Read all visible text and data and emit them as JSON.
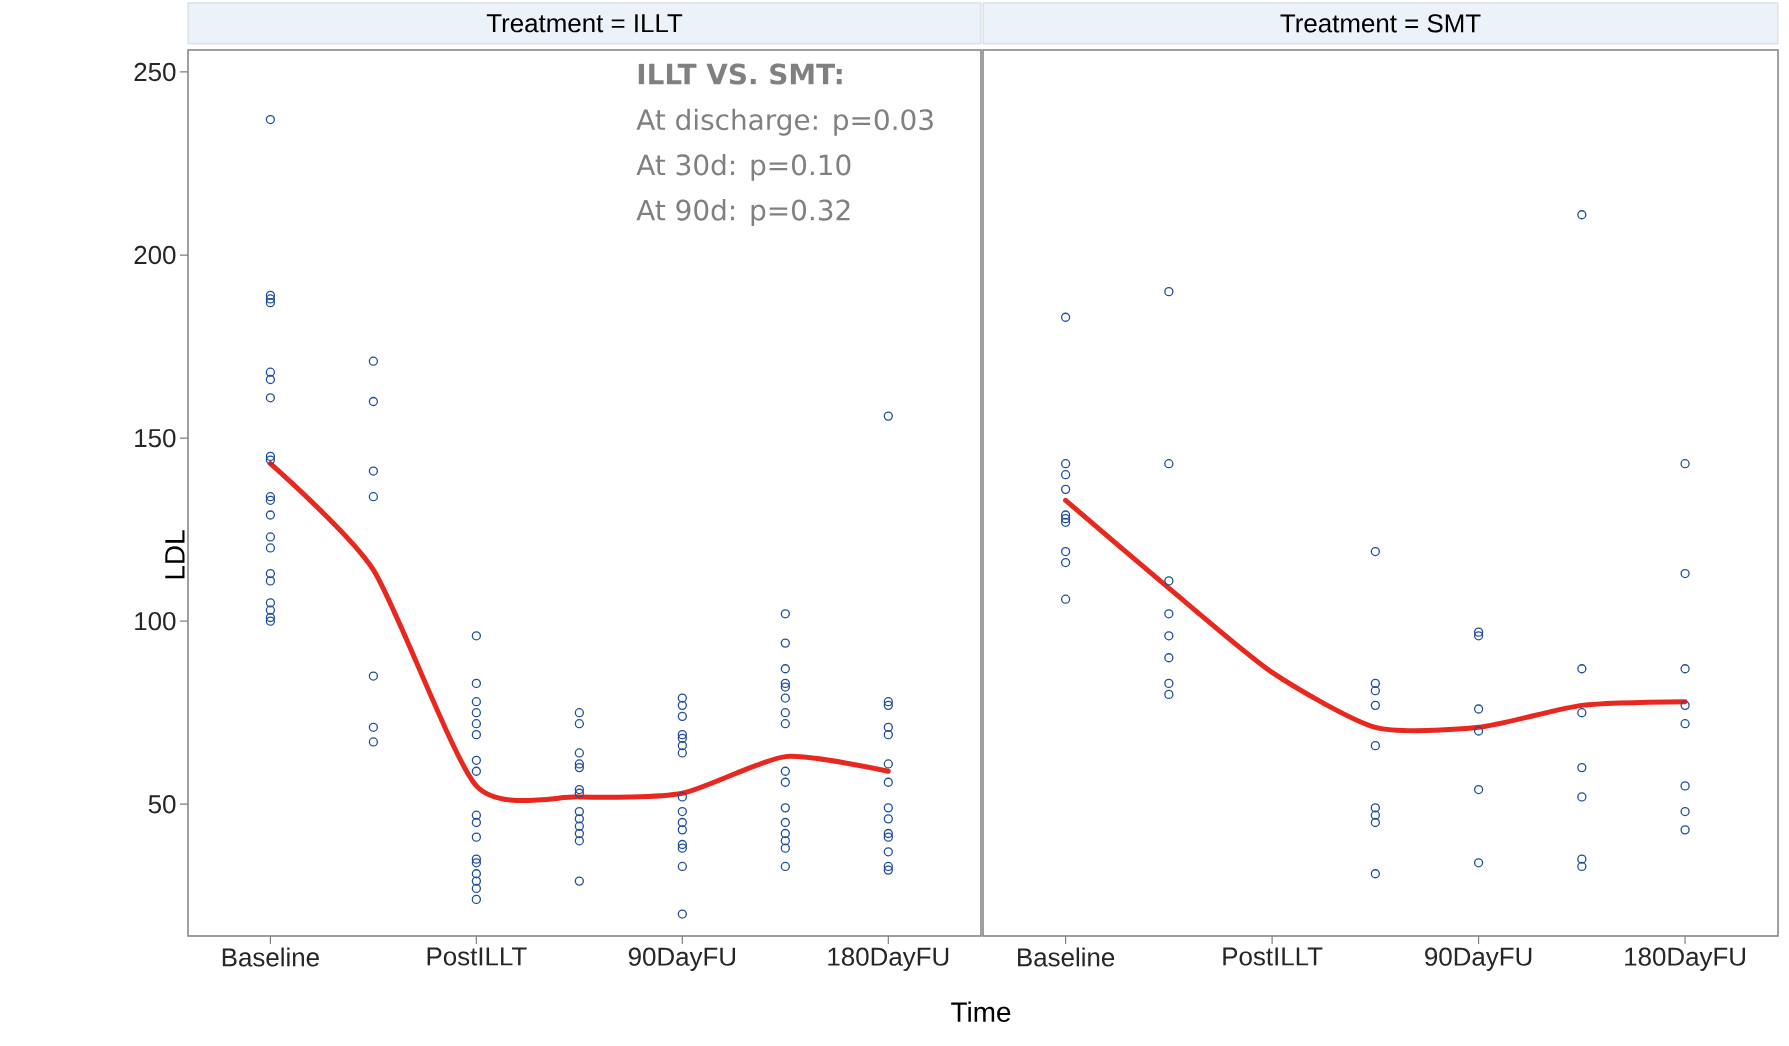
{
  "chart_data": [
    {
      "type": "scatter",
      "title": "Treatment = ILLT",
      "ylabel": "LDL",
      "xlabel": "Time",
      "annotations": [
        "ILLT VS. SMT:",
        "At discharge: p=0.03",
        "At 30d:        p=0.10",
        "At 90d:        p=0.32"
      ],
      "categories": [
        "Baseline",
        null,
        "PostILLT",
        null,
        "90DayFU",
        null,
        "180DayFU"
      ],
      "ylim": [
        14,
        256
      ],
      "yticks": [
        50,
        100,
        150,
        200,
        250
      ],
      "grid": false,
      "color": "#1f4e9c",
      "marker": "circle",
      "series": [
        {
          "values": [
            237,
            171,
            96,
            75,
            79,
            102,
            156
          ]
        },
        {
          "values": [
            189,
            160,
            83,
            72,
            77,
            94,
            78
          ]
        },
        {
          "values": [
            188,
            141,
            78,
            64,
            74,
            87,
            77
          ]
        },
        {
          "values": [
            187,
            134,
            75,
            61,
            69,
            83,
            71
          ]
        },
        {
          "values": [
            168,
            85,
            72,
            60,
            68,
            82,
            69
          ]
        },
        {
          "values": [
            166,
            71,
            69,
            54,
            66,
            79,
            61
          ]
        },
        {
          "values": [
            161,
            67,
            62,
            53,
            64,
            75,
            56
          ]
        },
        {
          "values": [
            145,
            null,
            59,
            48,
            52,
            72,
            49
          ]
        },
        {
          "values": [
            144,
            null,
            47,
            46,
            48,
            59,
            46
          ]
        },
        {
          "values": [
            134,
            null,
            45,
            44,
            45,
            56,
            42
          ]
        },
        {
          "values": [
            133,
            null,
            41,
            42,
            43,
            49,
            41
          ]
        },
        {
          "values": [
            129,
            null,
            35,
            40,
            39,
            45,
            37
          ]
        },
        {
          "values": [
            123,
            null,
            34,
            29,
            38,
            42,
            33
          ]
        },
        {
          "values": [
            120,
            null,
            31,
            null,
            33,
            40,
            32
          ]
        },
        {
          "values": [
            113,
            null,
            29,
            null,
            20,
            38,
            null
          ]
        },
        {
          "values": [
            111,
            null,
            27,
            null,
            null,
            33,
            null
          ]
        },
        {
          "values": [
            105,
            null,
            24,
            null,
            null,
            null,
            null
          ]
        },
        {
          "values": [
            103,
            null,
            null,
            null,
            null,
            null,
            null
          ]
        },
        {
          "values": [
            101,
            null,
            null,
            null,
            null,
            null,
            null
          ]
        },
        {
          "values": [
            100,
            null,
            null,
            null,
            null,
            null,
            null
          ]
        },
        {
          "type": "line",
          "marker": "none",
          "color": "#e8281e",
          "values": [
            143,
            114,
            55,
            52,
            53,
            63,
            59
          ]
        }
      ]
    },
    {
      "type": "scatter",
      "title": "Treatment = SMT",
      "tick_labels": "x",
      "categories": [
        "Baseline",
        null,
        "PostILLT",
        null,
        "90DayFU",
        null,
        "180DayFU"
      ],
      "ylim": [
        14,
        256
      ],
      "yticks": [
        50,
        100,
        150,
        200,
        250
      ],
      "grid": false,
      "color": "#1f4e9c",
      "marker": "circle",
      "series": [
        {
          "values": [
            183,
            190,
            null,
            119,
            97,
            211,
            143
          ]
        },
        {
          "values": [
            143,
            143,
            null,
            83,
            96,
            87,
            113
          ]
        },
        {
          "values": [
            140,
            111,
            null,
            81,
            76,
            75,
            87
          ]
        },
        {
          "values": [
            136,
            102,
            null,
            77,
            70,
            60,
            77
          ]
        },
        {
          "values": [
            129,
            96,
            null,
            66,
            54,
            52,
            72
          ]
        },
        {
          "values": [
            128,
            90,
            null,
            49,
            34,
            35,
            55
          ]
        },
        {
          "values": [
            127,
            83,
            null,
            47,
            null,
            33,
            48
          ]
        },
        {
          "values": [
            119,
            80,
            null,
            45,
            null,
            null,
            43
          ]
        },
        {
          "values": [
            116,
            null,
            null,
            31,
            null,
            null,
            null
          ]
        },
        {
          "values": [
            106,
            null,
            null,
            null,
            null,
            null,
            null
          ]
        },
        {
          "type": "line",
          "marker": "none",
          "color": "#e8281e",
          "values": [
            133,
            109,
            86,
            71,
            71,
            77,
            78
          ]
        }
      ]
    }
  ]
}
